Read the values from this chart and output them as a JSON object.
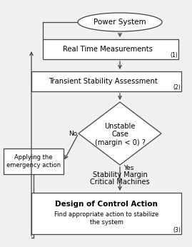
{
  "bg_color": "#f0f0f0",
  "box_color": "#ffffff",
  "line_color": "#444444",
  "text_color": "#000000",
  "title": "Power System",
  "box1_text": "Real Time Measurements",
  "box1_num": "(1)",
  "box2_text": "Transient Stability Assessment",
  "box2_num": "(2)",
  "diamond_line1": "Unstable",
  "diamond_line2": "Case",
  "diamond_line3": "(margin < 0) ?",
  "left_box_text": "Applying the\nemergency action",
  "yes_label": "Yes",
  "no_label": "No",
  "below_diamond_line1": "Stability Margin",
  "below_diamond_line2": "Critical Machines",
  "bottom_box_title": "Design of Control Action",
  "bottom_box_sub": "Find appropriate action to stabilize\nthe system",
  "bottom_box_num": "(3)"
}
